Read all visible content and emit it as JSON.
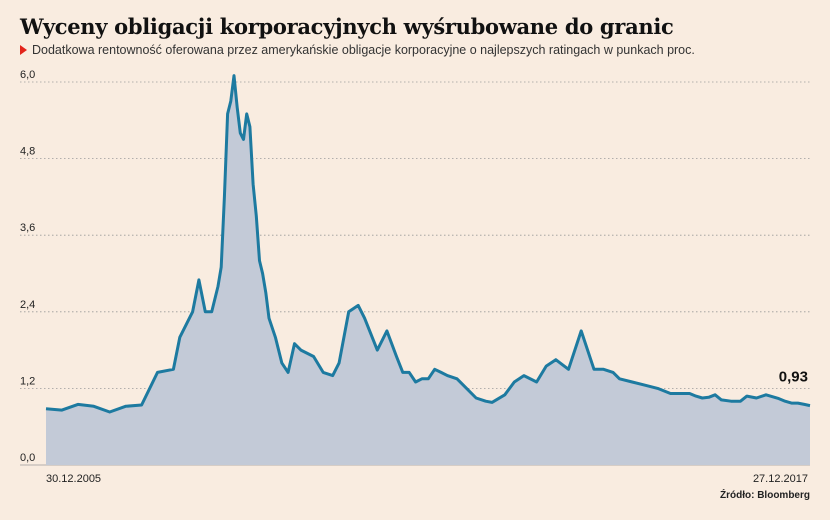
{
  "header": {
    "title": "Wyceny obligacji korporacyjnych wyśrubowane do granic",
    "subtitle": "Dodatkowa rentowność oferowana przez amerykańskie obligacje korporacyjne o najlepszych ratingach w punkach proc."
  },
  "source": "Źródło: Bloomberg",
  "colors": {
    "line": "#1d7aa0",
    "area": "#c3cad7",
    "grid": "#9a9a9a",
    "background": "#f9ece0",
    "accent": "#e3241b"
  },
  "chart_data": {
    "type": "area",
    "ylim": [
      0,
      6
    ],
    "yticks": [
      "0,0",
      "1,2",
      "2,4",
      "3,6",
      "4,8",
      "6,0"
    ],
    "ytick_values": [
      0,
      1.2,
      2.4,
      3.6,
      4.8,
      6.0
    ],
    "x_start_label": "30.12.2005",
    "x_end_label": "27.12.2017",
    "last_value_label": "0,93",
    "grid": true,
    "x": [
      2006.0,
      2006.25,
      2006.5,
      2006.75,
      2007.0,
      2007.25,
      2007.5,
      2007.75,
      2008.0,
      2008.1,
      2008.2,
      2008.3,
      2008.4,
      2008.5,
      2008.6,
      2008.7,
      2008.75,
      2008.8,
      2008.85,
      2008.9,
      2008.95,
      2009.0,
      2009.05,
      2009.1,
      2009.15,
      2009.2,
      2009.25,
      2009.3,
      2009.35,
      2009.4,
      2009.45,
      2009.5,
      2009.6,
      2009.7,
      2009.8,
      2009.9,
      2010.0,
      2010.2,
      2010.35,
      2010.5,
      2010.6,
      2010.75,
      2010.9,
      2011.0,
      2011.2,
      2011.35,
      2011.5,
      2011.6,
      2011.7,
      2011.8,
      2011.9,
      2012.0,
      2012.1,
      2012.2,
      2012.3,
      2012.45,
      2012.6,
      2012.75,
      2012.9,
      2013.0,
      2013.2,
      2013.35,
      2013.5,
      2013.7,
      2013.85,
      2014.0,
      2014.2,
      2014.4,
      2014.6,
      2014.75,
      2014.9,
      2015.0,
      2015.2,
      2015.4,
      2015.6,
      2015.8,
      2016.0,
      2016.1,
      2016.2,
      2016.3,
      2016.4,
      2016.5,
      2016.6,
      2016.75,
      2016.9,
      2017.0,
      2017.15,
      2017.3,
      2017.5,
      2017.6,
      2017.7,
      2017.8,
      2017.9,
      2017.99
    ],
    "values": [
      0.88,
      0.86,
      0.95,
      0.92,
      0.83,
      0.92,
      0.94,
      1.45,
      1.5,
      2.0,
      2.2,
      2.4,
      2.9,
      2.4,
      2.4,
      2.8,
      3.1,
      4.2,
      5.5,
      5.7,
      6.1,
      5.6,
      5.2,
      5.1,
      5.5,
      5.3,
      4.4,
      3.9,
      3.2,
      3.0,
      2.7,
      2.3,
      2.0,
      1.6,
      1.45,
      1.9,
      1.8,
      1.7,
      1.45,
      1.4,
      1.6,
      2.4,
      2.5,
      2.3,
      1.8,
      2.1,
      1.7,
      1.45,
      1.45,
      1.3,
      1.35,
      1.35,
      1.5,
      1.45,
      1.4,
      1.35,
      1.2,
      1.05,
      1.0,
      0.98,
      1.1,
      1.3,
      1.4,
      1.3,
      1.55,
      1.65,
      1.5,
      2.1,
      1.5,
      1.5,
      1.45,
      1.35,
      1.3,
      1.25,
      1.2,
      1.12,
      1.12,
      1.12,
      1.08,
      1.05,
      1.06,
      1.1,
      1.02,
      1.0,
      1.0,
      1.08,
      1.05,
      1.1,
      1.04,
      1.0,
      0.97,
      0.97,
      0.95,
      0.93
    ]
  }
}
